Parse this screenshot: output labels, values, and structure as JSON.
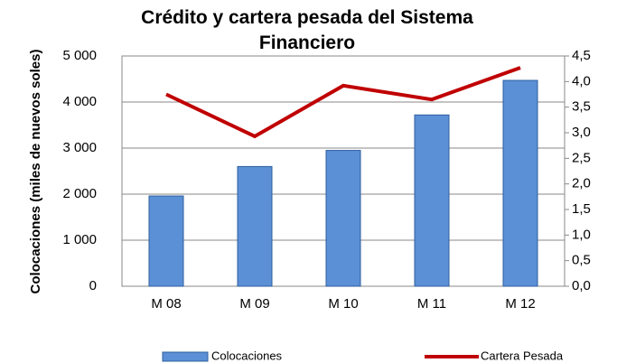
{
  "chart_data": {
    "type": "bar",
    "title": "Crédito y cartera pesada del Sistema Financiero",
    "ylabel": "Colocaciones  (miles de nuevos soles)",
    "categories": [
      "M 08",
      "M 09",
      "M 10",
      "M 11",
      "M 12"
    ],
    "series": [
      {
        "name": "Colocaciones",
        "color": "#5b8fd6",
        "type": "bar",
        "values": [
          1960,
          2600,
          2950,
          3720,
          4470
        ]
      },
      {
        "name": "Cartera Pesada",
        "color": "#c00000",
        "type": "line",
        "axis": "y2",
        "values": [
          3.75,
          2.93,
          3.92,
          3.65,
          4.27
        ]
      }
    ],
    "ylim": [
      0,
      5000
    ],
    "yticks": [
      0,
      {
        "value": 1000,
        "label": "1 000"
      },
      {
        "value": 2000,
        "label": "2 000"
      },
      {
        "value": 3000,
        "label": "3 000"
      },
      {
        "value": 4000,
        "label": "4 000"
      },
      {
        "value": 5000,
        "label": "5 000"
      }
    ],
    "y2lim": [
      0,
      4.5
    ],
    "y2ticks": [
      {
        "value": 0,
        "label": "0,0"
      },
      {
        "value": 0.5,
        "label": "0,5"
      },
      {
        "value": 1,
        "label": "1,0"
      },
      {
        "value": 1.5,
        "label": "1,5"
      },
      {
        "value": 2,
        "label": "2,0"
      },
      {
        "value": 2.5,
        "label": "2,5"
      },
      {
        "value": 3,
        "label": "3,0"
      },
      {
        "value": 3.5,
        "label": "3,5"
      },
      {
        "value": 4,
        "label": "4,0"
      },
      {
        "value": 4.5,
        "label": "4,5"
      }
    ],
    "grid": true,
    "legend": "bottom"
  }
}
